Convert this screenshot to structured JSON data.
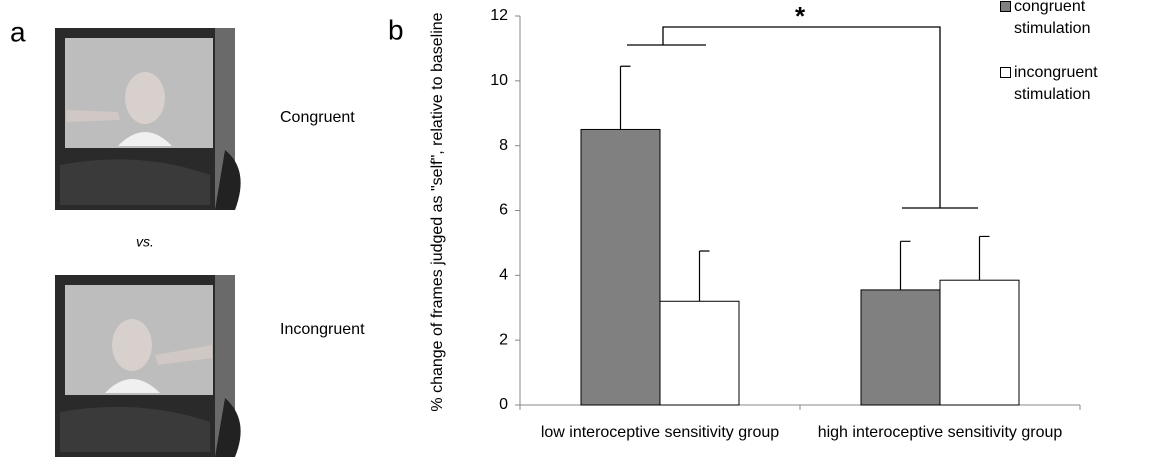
{
  "panel_a": {
    "label": "a",
    "conditions": [
      "Congruent",
      "Incongruent"
    ],
    "versus": "vs."
  },
  "chart_data": {
    "type": "bar",
    "panel_label": "b",
    "ylabel": "% change of frames judged as \"self\", relative to baseline",
    "categories": [
      "low interoceptive sensitivity group",
      "high interoceptive sensitivity group"
    ],
    "series": [
      {
        "name": "congruent stimulation",
        "color": "#808080",
        "values": [
          8.5,
          3.55
        ],
        "errors": [
          1.95,
          1.5
        ]
      },
      {
        "name": "incongruent stimulation",
        "color": "#ffffff",
        "values": [
          3.2,
          3.85
        ],
        "errors": [
          1.55,
          1.35
        ]
      }
    ],
    "ylim": [
      0,
      12
    ],
    "yticks": [
      0,
      2,
      4,
      6,
      8,
      10,
      12
    ],
    "annotation": "*",
    "legend": "top-right"
  }
}
